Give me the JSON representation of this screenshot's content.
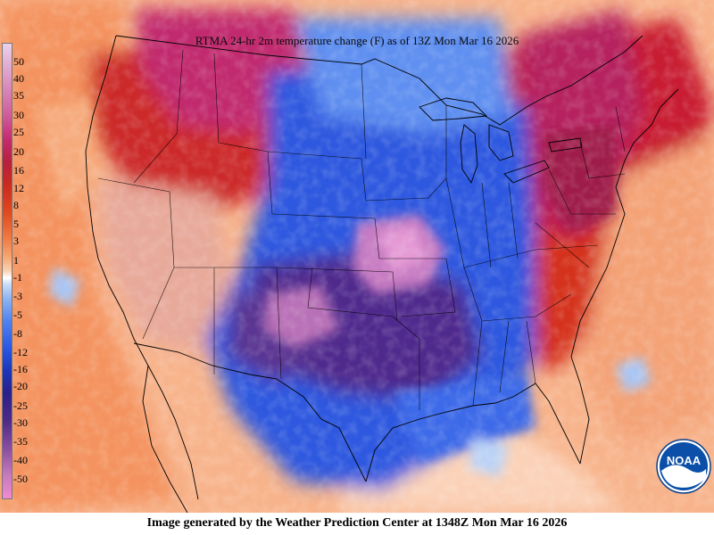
{
  "map": {
    "title": "RTMA 24-hr 2m temperature change (F) as of 13Z Mon Mar 16 2026",
    "footer": "Image generated by the Weather Prediction Center at 1348Z Mon Mar 16 2026",
    "units": "F",
    "variable": "24-hr 2m temperature change",
    "legend_values": [
      "50",
      "40",
      "35",
      "30",
      "25",
      "20",
      "16",
      "12",
      "8",
      "5",
      "3",
      "1",
      "-1",
      "-3",
      "-5",
      "-8",
      "-12",
      "-16",
      "-20",
      "-25",
      "-30",
      "-35",
      "-40",
      "-50"
    ],
    "logo_text": "NOAA",
    "colors": {
      "warm_max": "#e2b3d6",
      "warm_strong": "#c52b71",
      "warm": "#cb2a20",
      "warm_mild": "#f08a55",
      "warm_slight": "#f9c7a4",
      "neutral": "#ffffff",
      "cool_slight": "#a9c6f5",
      "cool": "#2f63ea",
      "cool_strong": "#1a2fa8",
      "cold_extreme": "#6b3597",
      "cold_max": "#c47ac0"
    }
  }
}
